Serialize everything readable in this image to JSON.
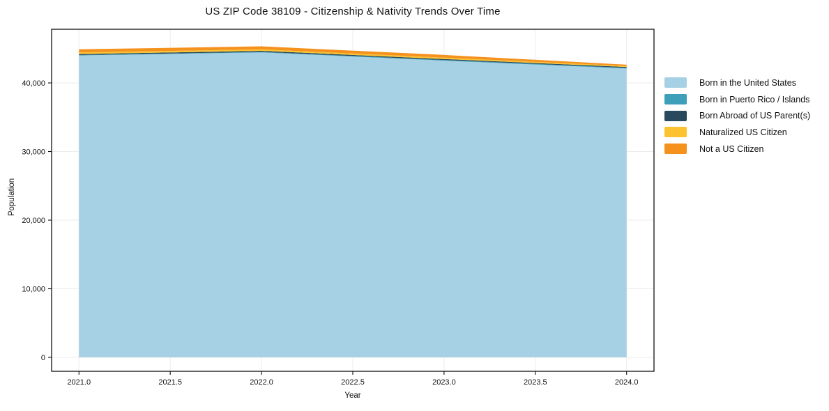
{
  "chart_data": {
    "type": "area",
    "stacked": true,
    "title": "US ZIP Code 38109 - Citizenship & Nativity Trends Over Time",
    "xlabel": "Year",
    "ylabel": "Population",
    "x": [
      2021,
      2022,
      2023,
      2024
    ],
    "series": [
      {
        "name": "Born in the United States",
        "color": "#a6d0e4",
        "values": [
          44000,
          44450,
          43250,
          42100
        ]
      },
      {
        "name": "Born in Puerto Rico / Islands",
        "color": "#3d9fba",
        "values": [
          60,
          70,
          90,
          100
        ]
      },
      {
        "name": "Born Abroad of US Parent(s)",
        "color": "#294a5c",
        "values": [
          140,
          150,
          140,
          120
        ]
      },
      {
        "name": "Naturalized US Citizen",
        "color": "#fcc230",
        "values": [
          250,
          220,
          200,
          140
        ]
      },
      {
        "name": "Not a US Citizen",
        "color": "#f5921e",
        "values": [
          450,
          440,
          400,
          200
        ]
      }
    ],
    "xlim": [
      2020.85,
      2024.15
    ],
    "ylim": [
      -2030,
      47820
    ],
    "xticks": {
      "values": [
        2021.0,
        2021.5,
        2022.0,
        2022.5,
        2023.0,
        2023.5,
        2024.0
      ],
      "labels": [
        "2021.0",
        "2021.5",
        "2022.0",
        "2022.5",
        "2023.0",
        "2023.5",
        "2024.0"
      ]
    },
    "yticks": {
      "values": [
        0,
        10000,
        20000,
        30000,
        40000
      ],
      "labels": [
        "0",
        "10,000",
        "20,000",
        "30,000",
        "40,000"
      ]
    },
    "grid": true,
    "legend_position": "outside-right",
    "colors": {
      "grid": "#ececec",
      "frame": "#111111",
      "tick": "#111111",
      "text": "#111111",
      "background": "#ffffff"
    }
  }
}
